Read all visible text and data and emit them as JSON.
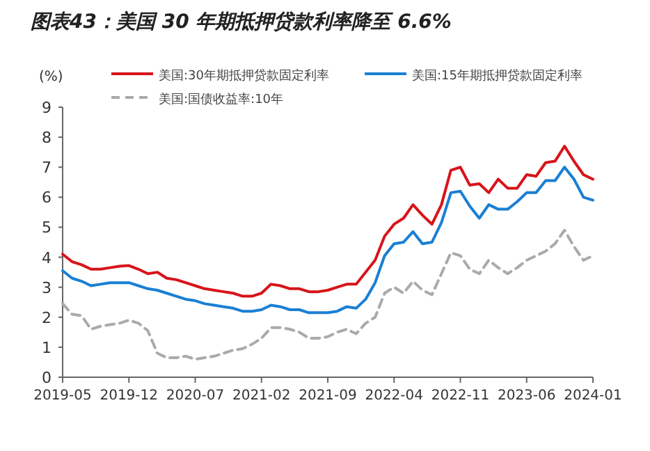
{
  "chart_data": {
    "type": "line",
    "title": "图表43：美国 30 年期抵押贷款利率降至 6.6%",
    "ylabel": "(%)",
    "x": [
      "2019-05",
      "2019-06",
      "2019-07",
      "2019-08",
      "2019-09",
      "2019-10",
      "2019-11",
      "2019-12",
      "2020-01",
      "2020-02",
      "2020-03",
      "2020-04",
      "2020-05",
      "2020-06",
      "2020-07",
      "2020-08",
      "2020-09",
      "2020-10",
      "2020-11",
      "2020-12",
      "2021-01",
      "2021-02",
      "2021-03",
      "2021-04",
      "2021-05",
      "2021-06",
      "2021-07",
      "2021-08",
      "2021-09",
      "2021-10",
      "2021-11",
      "2021-12",
      "2022-01",
      "2022-02",
      "2022-03",
      "2022-04",
      "2022-05",
      "2022-06",
      "2022-07",
      "2022-08",
      "2022-09",
      "2022-10",
      "2022-11",
      "2022-12",
      "2023-01",
      "2023-02",
      "2023-03",
      "2023-04",
      "2023-05",
      "2023-06",
      "2023-07",
      "2023-08",
      "2023-09",
      "2023-10",
      "2023-11",
      "2023-12",
      "2024-01"
    ],
    "series": [
      {
        "name": "美国:30年期抵押贷款固定利率",
        "color": "#d7141a",
        "values": [
          4.1,
          3.85,
          3.75,
          3.6,
          3.6,
          3.65,
          3.7,
          3.72,
          3.6,
          3.45,
          3.5,
          3.3,
          3.25,
          3.15,
          3.05,
          2.95,
          2.9,
          2.85,
          2.8,
          2.7,
          2.7,
          2.8,
          3.1,
          3.05,
          2.95,
          2.95,
          2.85,
          2.85,
          2.9,
          3.0,
          3.1,
          3.1,
          3.5,
          3.9,
          4.7,
          5.1,
          5.3,
          5.75,
          5.4,
          5.1,
          5.75,
          6.9,
          7.0,
          6.4,
          6.45,
          6.15,
          6.6,
          6.3,
          6.3,
          6.75,
          6.7,
          7.15,
          7.2,
          7.7,
          7.2,
          6.75,
          6.6
        ]
      },
      {
        "name": "美国:15年期抵押贷款固定利率",
        "color": "#1a7fd4",
        "values": [
          3.55,
          3.3,
          3.2,
          3.05,
          3.1,
          3.15,
          3.15,
          3.15,
          3.05,
          2.95,
          2.9,
          2.8,
          2.7,
          2.6,
          2.55,
          2.45,
          2.4,
          2.35,
          2.3,
          2.2,
          2.2,
          2.25,
          2.4,
          2.35,
          2.25,
          2.25,
          2.15,
          2.15,
          2.15,
          2.2,
          2.35,
          2.3,
          2.6,
          3.15,
          4.05,
          4.45,
          4.5,
          4.85,
          4.45,
          4.5,
          5.15,
          6.15,
          6.2,
          5.7,
          5.3,
          5.75,
          5.6,
          5.6,
          5.85,
          6.15,
          6.15,
          6.55,
          6.55,
          7.0,
          6.6,
          6.0,
          5.9
        ]
      },
      {
        "name": "美国:国债收益率:10年",
        "color": "#aaaaaa",
        "line_style": "dashed",
        "values": [
          2.45,
          2.1,
          2.05,
          1.6,
          1.7,
          1.75,
          1.8,
          1.9,
          1.8,
          1.55,
          0.8,
          0.65,
          0.65,
          0.7,
          0.6,
          0.65,
          0.7,
          0.8,
          0.9,
          0.95,
          1.1,
          1.3,
          1.65,
          1.65,
          1.6,
          1.5,
          1.3,
          1.3,
          1.35,
          1.5,
          1.6,
          1.45,
          1.8,
          2.0,
          2.8,
          3.0,
          2.8,
          3.2,
          2.9,
          2.75,
          3.45,
          4.15,
          4.05,
          3.6,
          3.45,
          3.9,
          3.65,
          3.45,
          3.65,
          3.9,
          4.05,
          4.2,
          4.45,
          4.9,
          4.35,
          3.9,
          4.05
        ]
      }
    ],
    "xlim": [
      "2019-05",
      "2024-01"
    ],
    "xticks": [
      "2019-05",
      "2019-12",
      "2020-07",
      "2021-02",
      "2021-09",
      "2022-04",
      "2022-11",
      "2023-06",
      "2024-01"
    ],
    "ylim": [
      0,
      9
    ],
    "yticks": [
      0,
      1,
      2,
      3,
      4,
      5,
      6,
      7,
      8,
      9
    ],
    "grid": false,
    "legend": "top",
    "line_style": "solid",
    "marker": "none"
  }
}
